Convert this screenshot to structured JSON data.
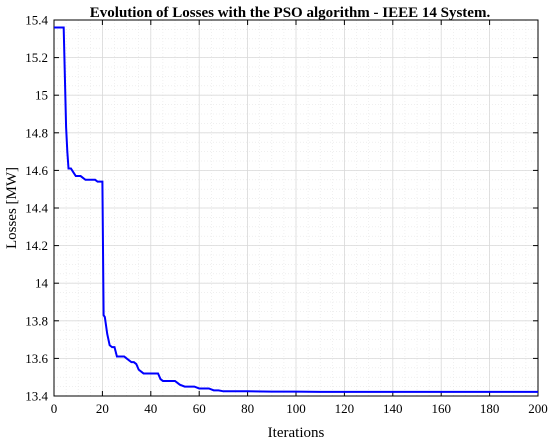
{
  "chart_data": {
    "type": "line",
    "title": "Evolution of Losses with the PSO algorithm - IEEE 14 System.",
    "xlabel": "Iterations",
    "ylabel": "Losses [MW]",
    "xlim": [
      0,
      200
    ],
    "ylim": [
      13.4,
      15.4
    ],
    "x_ticks": [
      0,
      20,
      40,
      60,
      80,
      100,
      120,
      140,
      160,
      180,
      200
    ],
    "y_ticks": [
      13.4,
      13.6,
      13.8,
      14,
      14.2,
      14.4,
      14.6,
      14.8,
      15,
      15.2,
      15.4
    ],
    "x_tick_labels": [
      "0",
      "20",
      "40",
      "60",
      "80",
      "100",
      "120",
      "140",
      "160",
      "180",
      "200"
    ],
    "y_tick_labels": [
      "13.4",
      "13.6",
      "13.8",
      "14",
      "14.2",
      "14.4",
      "14.6",
      "14.8",
      "15",
      "15.2",
      "15.4"
    ],
    "grid": true,
    "minor_grid": true,
    "colors": {
      "line": "#0000ff",
      "major_grid": "#d9d9d9",
      "minor_grid": "#e6e6e6",
      "axes": "#000000"
    },
    "series": [
      {
        "x": [
          0,
          1,
          2,
          3,
          4,
          5,
          5.5,
          6,
          7,
          8,
          9,
          10,
          11,
          12,
          13,
          14,
          15,
          16,
          17,
          18,
          19,
          20,
          20.5,
          21,
          22,
          23,
          24,
          25,
          26,
          27,
          28,
          29,
          30,
          31,
          32,
          33,
          34,
          35,
          36,
          37,
          38,
          39,
          40,
          41,
          42,
          43,
          44,
          45,
          46,
          47,
          48,
          49,
          50,
          52,
          54,
          56,
          58,
          60,
          62,
          64,
          66,
          68,
          70,
          75,
          80,
          90,
          100,
          110,
          120,
          140,
          160,
          180,
          200
        ],
        "y": [
          15.36,
          15.36,
          15.36,
          15.36,
          15.36,
          14.83,
          14.7,
          14.61,
          14.61,
          14.59,
          14.57,
          14.57,
          14.57,
          14.56,
          14.55,
          14.55,
          14.55,
          14.55,
          14.55,
          14.54,
          14.54,
          14.54,
          13.83,
          13.82,
          13.73,
          13.67,
          13.66,
          13.66,
          13.61,
          13.61,
          13.61,
          13.61,
          13.6,
          13.59,
          13.58,
          13.58,
          13.57,
          13.54,
          13.53,
          13.52,
          13.52,
          13.52,
          13.52,
          13.52,
          13.52,
          13.52,
          13.49,
          13.48,
          13.48,
          13.48,
          13.48,
          13.48,
          13.48,
          13.46,
          13.45,
          13.45,
          13.45,
          13.44,
          13.44,
          13.44,
          13.43,
          13.43,
          13.425,
          13.425,
          13.425,
          13.423,
          13.423,
          13.422,
          13.422,
          13.422,
          13.422,
          13.422,
          13.422
        ]
      }
    ]
  }
}
